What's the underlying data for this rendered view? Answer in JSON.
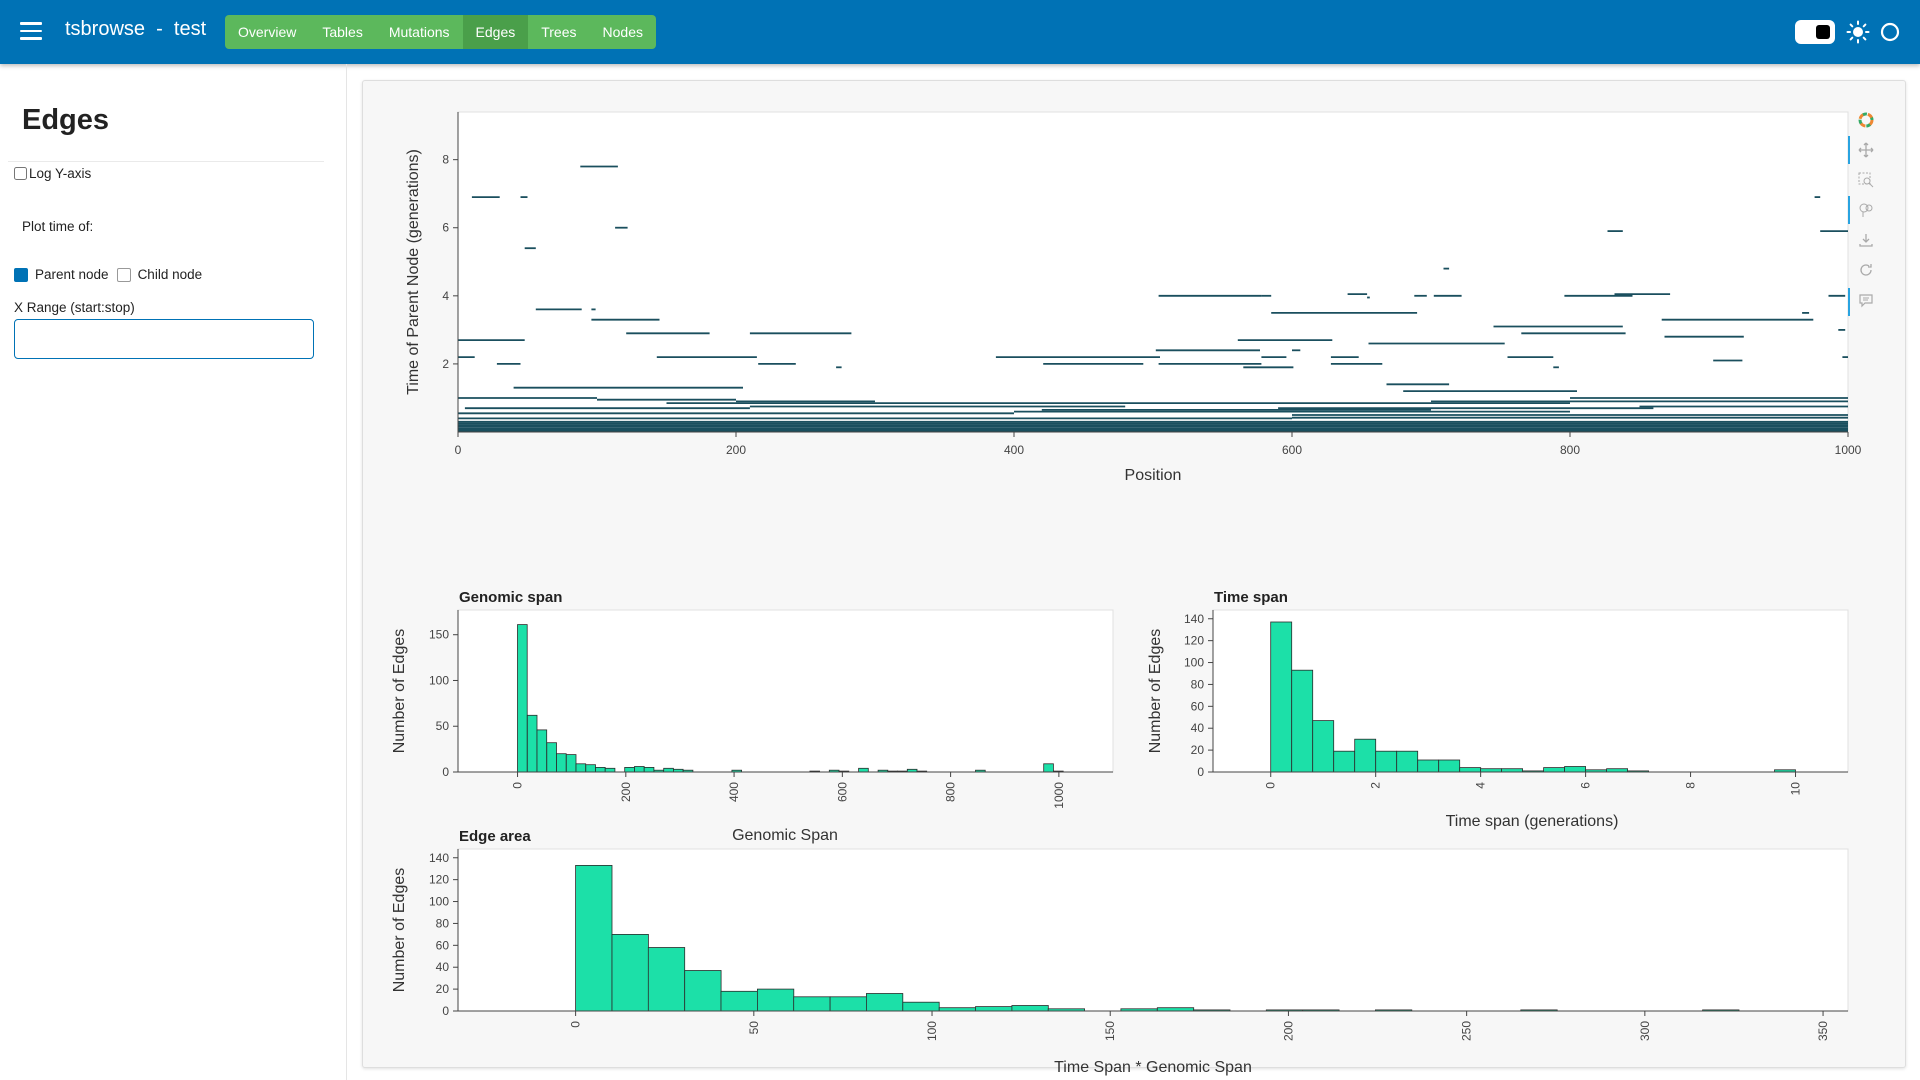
{
  "header": {
    "app_title": "tsbrowse  -  test",
    "tabs": [
      {
        "label": "Overview"
      },
      {
        "label": "Tables"
      },
      {
        "label": "Mutations"
      },
      {
        "label": "Edges"
      },
      {
        "label": "Trees"
      },
      {
        "label": "Nodes"
      }
    ],
    "active_tab": "Edges"
  },
  "sidebar": {
    "title": "Edges",
    "log_y_label": "Log Y-axis",
    "plot_time_label": "Plot time of:",
    "parent_node_label": "Parent node",
    "child_node_label": "Child node",
    "x_range_label": "X Range (start:stop)",
    "x_range_value": ""
  },
  "colors": {
    "header": "#0072b5",
    "tabs": "#5cb85c",
    "edge_line": "#1a4f5e",
    "bar_fill": "#1ce0a8"
  },
  "chart_data": [
    {
      "type": "segments",
      "title": "",
      "xlabel": "Position",
      "ylabel": "Time of Parent Node (generations)",
      "xlim": [
        0,
        1000
      ],
      "ylim": [
        0,
        9.4
      ],
      "xticks": [
        0,
        200,
        400,
        600,
        800,
        1000
      ],
      "yticks": [
        2,
        4,
        6,
        8
      ],
      "segments": [
        [
          10,
          30,
          6.9
        ],
        [
          45,
          50,
          6.9
        ],
        [
          88,
          115,
          7.8
        ],
        [
          113,
          122,
          6.0
        ],
        [
          48,
          56,
          5.4
        ],
        [
          56,
          89,
          3.6
        ],
        [
          96,
          99,
          3.6
        ],
        [
          96,
          145,
          3.3
        ],
        [
          121,
          181,
          2.9
        ],
        [
          210,
          283,
          2.9
        ],
        [
          0,
          48,
          2.7
        ],
        [
          0,
          12,
          2.2
        ],
        [
          28,
          45,
          2.0
        ],
        [
          143,
          215,
          2.2
        ],
        [
          216,
          243,
          2.0
        ],
        [
          272,
          276,
          1.9
        ],
        [
          387,
          505,
          2.2
        ],
        [
          421,
          493,
          2.0
        ],
        [
          504,
          578,
          2.0
        ],
        [
          502,
          577,
          2.4
        ],
        [
          561,
          629,
          2.7
        ],
        [
          578,
          596,
          2.2
        ],
        [
          565,
          601,
          1.9
        ],
        [
          600,
          606,
          2.4
        ],
        [
          628,
          648,
          2.2
        ],
        [
          628,
          665,
          2.0
        ],
        [
          655,
          753,
          2.6
        ],
        [
          504,
          578,
          4.0
        ],
        [
          578,
          585,
          4.0
        ],
        [
          585,
          690,
          3.5
        ],
        [
          640,
          654,
          4.05
        ],
        [
          654,
          656,
          3.95
        ],
        [
          688,
          697,
          4.0
        ],
        [
          702,
          722,
          4.0
        ],
        [
          709,
          713,
          4.8
        ],
        [
          745,
          838,
          3.1
        ],
        [
          765,
          840,
          2.9
        ],
        [
          755,
          788,
          2.2
        ],
        [
          788,
          792,
          1.9
        ],
        [
          796,
          845,
          4.0
        ],
        [
          832,
          872,
          4.05
        ],
        [
          827,
          838,
          5.9
        ],
        [
          866,
          975,
          3.3
        ],
        [
          868,
          925,
          2.8
        ],
        [
          903,
          924,
          2.1
        ],
        [
          967,
          972,
          3.5
        ],
        [
          976,
          980,
          6.9
        ],
        [
          980,
          1000,
          5.9
        ],
        [
          986,
          998,
          4.0
        ],
        [
          993,
          998,
          3.0
        ],
        [
          996,
          1000,
          2.2
        ],
        [
          668,
          713,
          1.4
        ],
        [
          40,
          205,
          1.3
        ],
        [
          0,
          100,
          1.0
        ],
        [
          100,
          200,
          0.95
        ],
        [
          200,
          300,
          0.9
        ],
        [
          150,
          400,
          0.85
        ],
        [
          400,
          600,
          0.85
        ],
        [
          600,
          800,
          0.85
        ],
        [
          700,
          1000,
          0.9
        ],
        [
          800,
          1000,
          1.0
        ],
        [
          680,
          805,
          1.2
        ],
        [
          5,
          210,
          0.7
        ],
        [
          210,
          480,
          0.75
        ],
        [
          420,
          700,
          0.65
        ],
        [
          590,
          860,
          0.7
        ],
        [
          850,
          1000,
          0.75
        ],
        [
          0,
          400,
          0.55
        ],
        [
          400,
          800,
          0.6
        ],
        [
          600,
          1000,
          0.5
        ],
        [
          0,
          200,
          0.4
        ],
        [
          200,
          600,
          0.4
        ],
        [
          600,
          1000,
          0.42
        ],
        [
          0,
          1000,
          0.3
        ],
        [
          0,
          1000,
          0.25
        ],
        [
          0,
          1000,
          0.2
        ],
        [
          0,
          1000,
          0.15
        ],
        [
          0,
          1000,
          0.1
        ],
        [
          0,
          1000,
          0.05
        ],
        [
          0,
          1000,
          0.02
        ]
      ]
    },
    {
      "type": "bar",
      "title": "Genomic span",
      "xlabel": "Genomic Span",
      "ylabel": "Number of Edges",
      "xlim": [
        -110,
        1100
      ],
      "ylim": [
        0,
        177
      ],
      "bin_width": 18,
      "xticks": [
        0,
        200,
        400,
        600,
        800,
        1000
      ],
      "yticks": [
        0,
        50,
        100,
        150
      ],
      "bins": [
        [
          0,
          161
        ],
        [
          18,
          62
        ],
        [
          36,
          46
        ],
        [
          54,
          32
        ],
        [
          72,
          20
        ],
        [
          90,
          19
        ],
        [
          108,
          9
        ],
        [
          126,
          8
        ],
        [
          144,
          5
        ],
        [
          162,
          4
        ],
        [
          198,
          5
        ],
        [
          216,
          6
        ],
        [
          234,
          5
        ],
        [
          252,
          2
        ],
        [
          270,
          4
        ],
        [
          288,
          3
        ],
        [
          306,
          2
        ],
        [
          396,
          2
        ],
        [
          540,
          1
        ],
        [
          576,
          2
        ],
        [
          594,
          1
        ],
        [
          630,
          4
        ],
        [
          666,
          2
        ],
        [
          684,
          1
        ],
        [
          702,
          1
        ],
        [
          720,
          3
        ],
        [
          738,
          1
        ],
        [
          846,
          2
        ],
        [
          972,
          9
        ],
        [
          990,
          1
        ]
      ]
    },
    {
      "type": "bar",
      "title": "Time span",
      "xlabel": "Time span (generations)",
      "ylabel": "Number of Edges",
      "xlim": [
        -1.1,
        11.0
      ],
      "ylim": [
        0,
        148
      ],
      "bin_width": 0.4,
      "xticks": [
        0,
        2,
        4,
        6,
        8,
        10
      ],
      "yticks": [
        0,
        20,
        40,
        60,
        80,
        100,
        120,
        140
      ],
      "bins": [
        [
          0,
          137
        ],
        [
          0.4,
          93
        ],
        [
          0.8,
          47
        ],
        [
          1.2,
          19
        ],
        [
          1.6,
          30
        ],
        [
          2.0,
          19
        ],
        [
          2.4,
          19
        ],
        [
          2.8,
          11
        ],
        [
          3.2,
          11
        ],
        [
          3.6,
          4
        ],
        [
          4.0,
          3
        ],
        [
          4.4,
          3
        ],
        [
          4.8,
          1
        ],
        [
          5.2,
          4
        ],
        [
          5.6,
          5
        ],
        [
          6.0,
          2
        ],
        [
          6.4,
          3
        ],
        [
          6.8,
          1
        ],
        [
          9.6,
          2
        ]
      ]
    },
    {
      "type": "bar",
      "title": "Edge area",
      "xlabel": "Time Span * Genomic Span",
      "ylabel": "Number of Edges",
      "xlim": [
        -33,
        357
      ],
      "ylim": [
        0,
        148
      ],
      "bin_width": 10.2,
      "xticks": [
        0,
        50,
        100,
        150,
        200,
        250,
        300,
        350
      ],
      "yticks": [
        0,
        20,
        40,
        60,
        80,
        100,
        120,
        140
      ],
      "bins": [
        [
          0,
          133
        ],
        [
          10.2,
          70
        ],
        [
          20.4,
          58
        ],
        [
          30.6,
          37
        ],
        [
          40.8,
          18
        ],
        [
          51,
          20
        ],
        [
          61.2,
          13
        ],
        [
          71.4,
          13
        ],
        [
          81.6,
          16
        ],
        [
          91.8,
          8
        ],
        [
          102,
          3
        ],
        [
          112.2,
          4
        ],
        [
          122.4,
          5
        ],
        [
          132.6,
          2
        ],
        [
          153,
          2
        ],
        [
          163.2,
          3
        ],
        [
          173.4,
          1
        ],
        [
          193.8,
          1
        ],
        [
          204,
          1
        ],
        [
          224.4,
          1
        ],
        [
          265.2,
          1
        ],
        [
          316.2,
          1
        ]
      ]
    }
  ]
}
